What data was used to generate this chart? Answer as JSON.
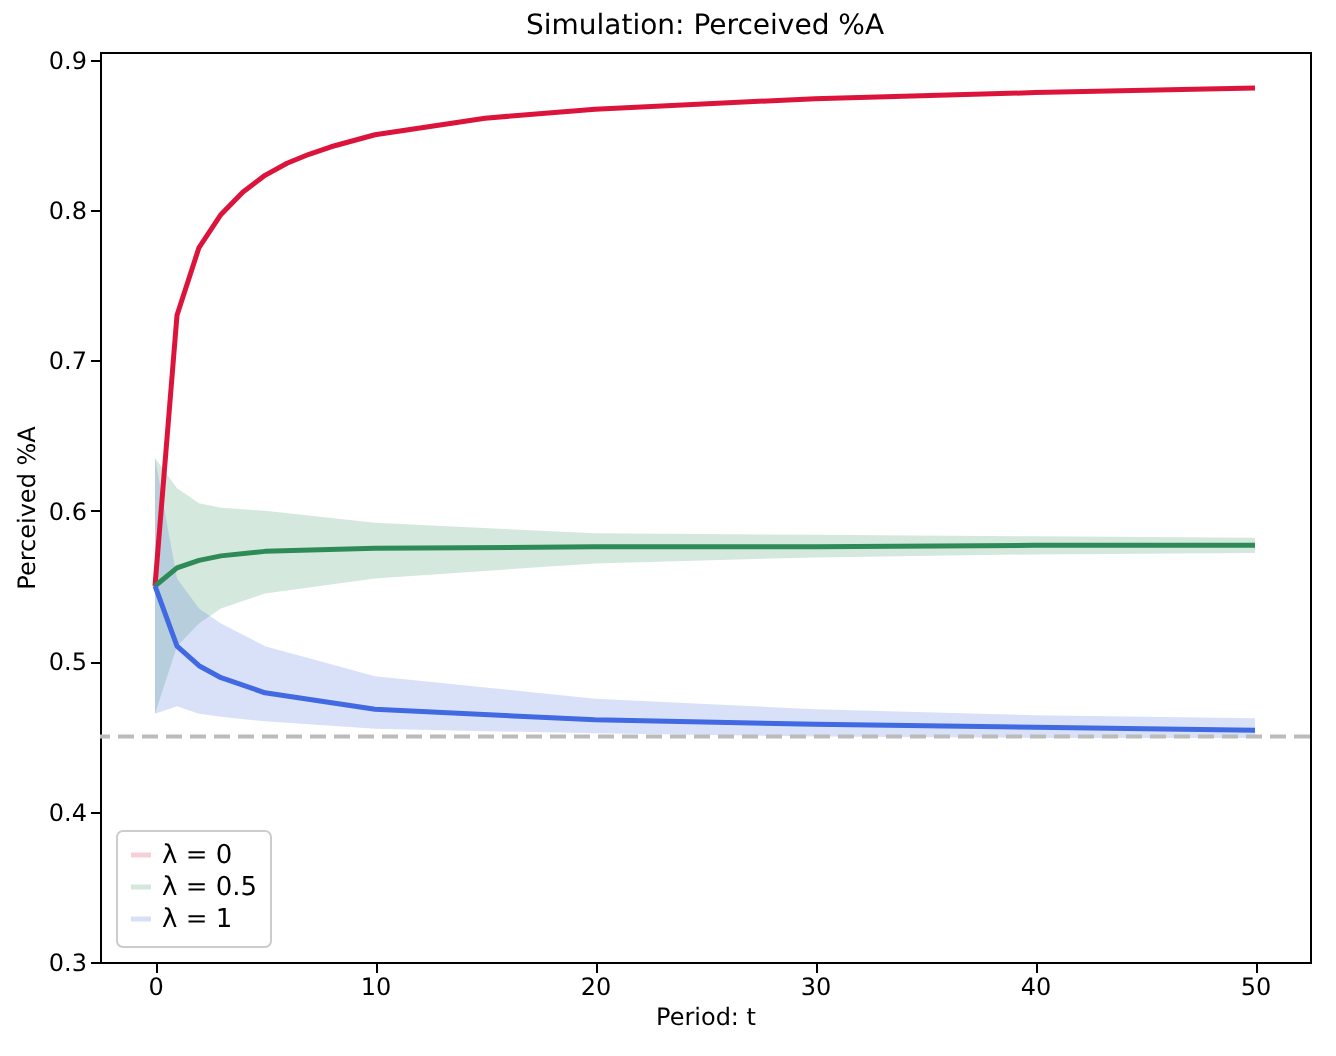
{
  "chart_data": {
    "type": "line",
    "title": "Simulation: Perceived %A",
    "xlabel": "Period: t",
    "ylabel": "Perceived %A",
    "xlim": [
      -2.5,
      52.5
    ],
    "xticks": [
      0,
      10,
      20,
      30,
      40,
      50
    ],
    "ylim": [
      0.3,
      0.905
    ],
    "yticks": [
      0.3,
      0.4,
      0.5,
      0.6,
      0.7,
      0.8,
      0.9
    ],
    "grid": false,
    "legend": "bottom left",
    "line_style": "solid",
    "marker": "none",
    "series": [
      {
        "name": "λ = 0",
        "color": "#dc143c",
        "x": [
          0,
          1,
          2,
          3,
          4,
          5,
          6,
          7,
          8,
          10,
          15,
          20,
          30,
          40,
          50
        ],
        "values": [
          0.55,
          0.73,
          0.775,
          0.797,
          0.812,
          0.823,
          0.831,
          0.837,
          0.842,
          0.85,
          0.861,
          0.867,
          0.874,
          0.878,
          0.881
        ]
      },
      {
        "name": "λ = 0.5",
        "color": "#2e8b57",
        "x": [
          0,
          1,
          2,
          3,
          5,
          10,
          20,
          30,
          40,
          50
        ],
        "values": [
          0.55,
          0.562,
          0.567,
          0.57,
          0.573,
          0.575,
          0.576,
          0.576,
          0.577,
          0.577
        ],
        "lower": [
          0.465,
          0.51,
          0.525,
          0.535,
          0.545,
          0.555,
          0.565,
          0.569,
          0.571,
          0.572
        ],
        "upper": [
          0.635,
          0.615,
          0.605,
          0.602,
          0.6,
          0.592,
          0.585,
          0.584,
          0.583,
          0.582
        ]
      },
      {
        "name": "λ = 1",
        "color": "#4169e1",
        "x": [
          0,
          1,
          2,
          3,
          5,
          10,
          20,
          30,
          40,
          50
        ],
        "values": [
          0.55,
          0.51,
          0.497,
          0.489,
          0.479,
          0.468,
          0.461,
          0.458,
          0.456,
          0.454
        ],
        "lower": [
          0.465,
          0.47,
          0.465,
          0.463,
          0.46,
          0.455,
          0.452,
          0.45,
          0.449,
          0.449
        ],
        "upper": [
          0.635,
          0.555,
          0.535,
          0.525,
          0.51,
          0.49,
          0.475,
          0.468,
          0.464,
          0.462
        ]
      }
    ],
    "ref_lines": [
      {
        "axis": "y",
        "value": 0.45,
        "color": "#bbbbbb",
        "line_style": "dashed"
      }
    ]
  }
}
